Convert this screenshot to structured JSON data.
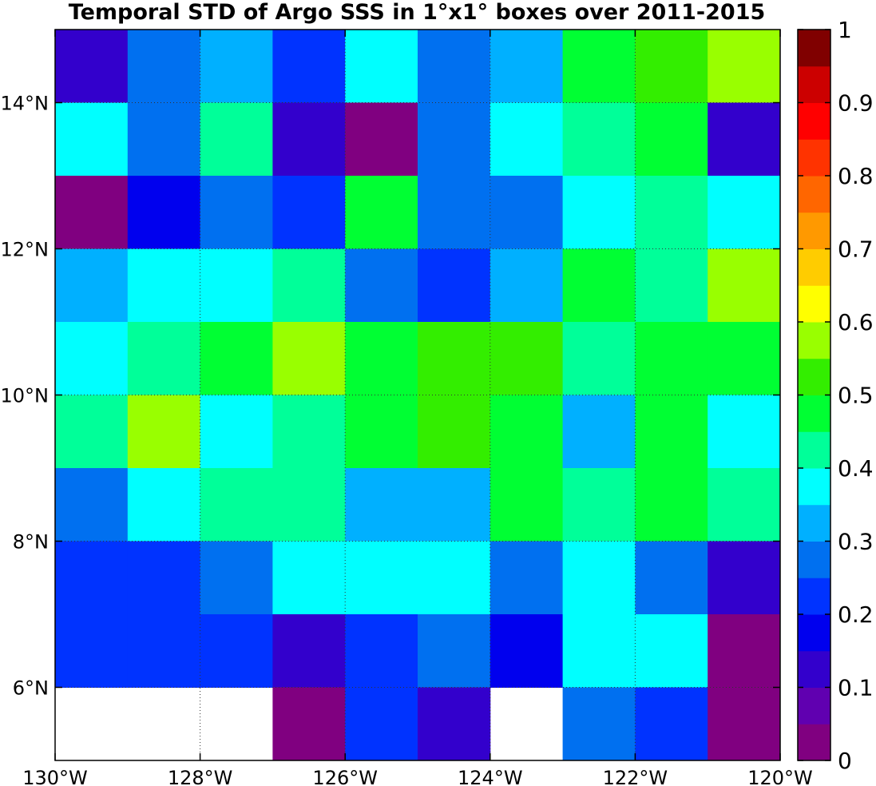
{
  "chart_data": {
    "type": "heatmap",
    "title": "Temporal STD of Argo SSS in 1°x1° boxes over 2011-2015",
    "x_edges": [
      -130,
      -129,
      -128,
      -127,
      -126,
      -125,
      -124,
      -123,
      -122,
      -121,
      -120
    ],
    "y_edges": [
      5,
      6,
      7,
      8,
      9,
      10,
      11,
      12,
      13,
      14,
      15
    ],
    "xlim": [
      -130,
      -120
    ],
    "ylim": [
      5,
      15
    ],
    "x_ticks": [
      -130,
      -128,
      -126,
      -124,
      -122,
      -120
    ],
    "x_tick_labels": [
      "130°W",
      "128°W",
      "126°W",
      "124°W",
      "122°W",
      "120°W"
    ],
    "y_ticks": [
      6,
      8,
      10,
      12,
      14
    ],
    "y_tick_labels": [
      "6°N",
      "8°N",
      "10°N",
      "12°N",
      "14°N"
    ],
    "grid": true,
    "values_rows_north_to_south": [
      [
        0.125,
        0.275,
        0.325,
        0.225,
        0.375,
        0.275,
        0.325,
        0.475,
        0.525,
        0.575
      ],
      [
        0.375,
        0.275,
        0.425,
        0.125,
        0.025,
        0.275,
        0.375,
        0.425,
        0.475,
        0.125
      ],
      [
        0.025,
        0.175,
        0.275,
        0.225,
        0.475,
        0.275,
        0.275,
        0.375,
        0.425,
        0.375
      ],
      [
        0.325,
        0.375,
        0.375,
        0.425,
        0.275,
        0.225,
        0.325,
        0.475,
        0.425,
        0.575
      ],
      [
        0.375,
        0.425,
        0.475,
        0.575,
        0.475,
        0.525,
        0.525,
        0.425,
        0.475,
        0.475
      ],
      [
        0.425,
        0.575,
        0.375,
        0.425,
        0.475,
        0.525,
        0.475,
        0.325,
        0.475,
        0.375
      ],
      [
        0.275,
        0.375,
        0.425,
        0.425,
        0.325,
        0.325,
        0.475,
        0.425,
        0.475,
        0.425
      ],
      [
        0.225,
        0.225,
        0.275,
        0.375,
        0.375,
        0.375,
        0.275,
        0.375,
        0.275,
        0.125
      ],
      [
        0.225,
        0.225,
        0.225,
        0.125,
        0.225,
        0.275,
        0.175,
        0.375,
        0.375,
        0.025
      ],
      [
        null,
        null,
        null,
        0.025,
        0.225,
        0.125,
        null,
        0.275,
        0.225,
        0.025
      ]
    ],
    "colorbar": {
      "range": [
        0,
        1
      ],
      "ticks": [
        0,
        0.1,
        0.2,
        0.3,
        0.4,
        0.5,
        0.6,
        0.7,
        0.8,
        0.9,
        1
      ],
      "tick_labels": [
        "0",
        "0.1",
        "0.2",
        "0.3",
        "0.4",
        "0.5",
        "0.6",
        "0.7",
        "0.8",
        "0.9",
        "1"
      ],
      "colors": [
        "#800080",
        "#6000b0",
        "#3300cc",
        "#0000ee",
        "#0033ff",
        "#0070f0",
        "#00b0ff",
        "#00ffff",
        "#00ff99",
        "#00ff33",
        "#33ee00",
        "#99ff00",
        "#ffff00",
        "#ffcc00",
        "#ff9900",
        "#ff6600",
        "#ff3300",
        "#ff0000",
        "#cc0000",
        "#800000"
      ]
    }
  }
}
